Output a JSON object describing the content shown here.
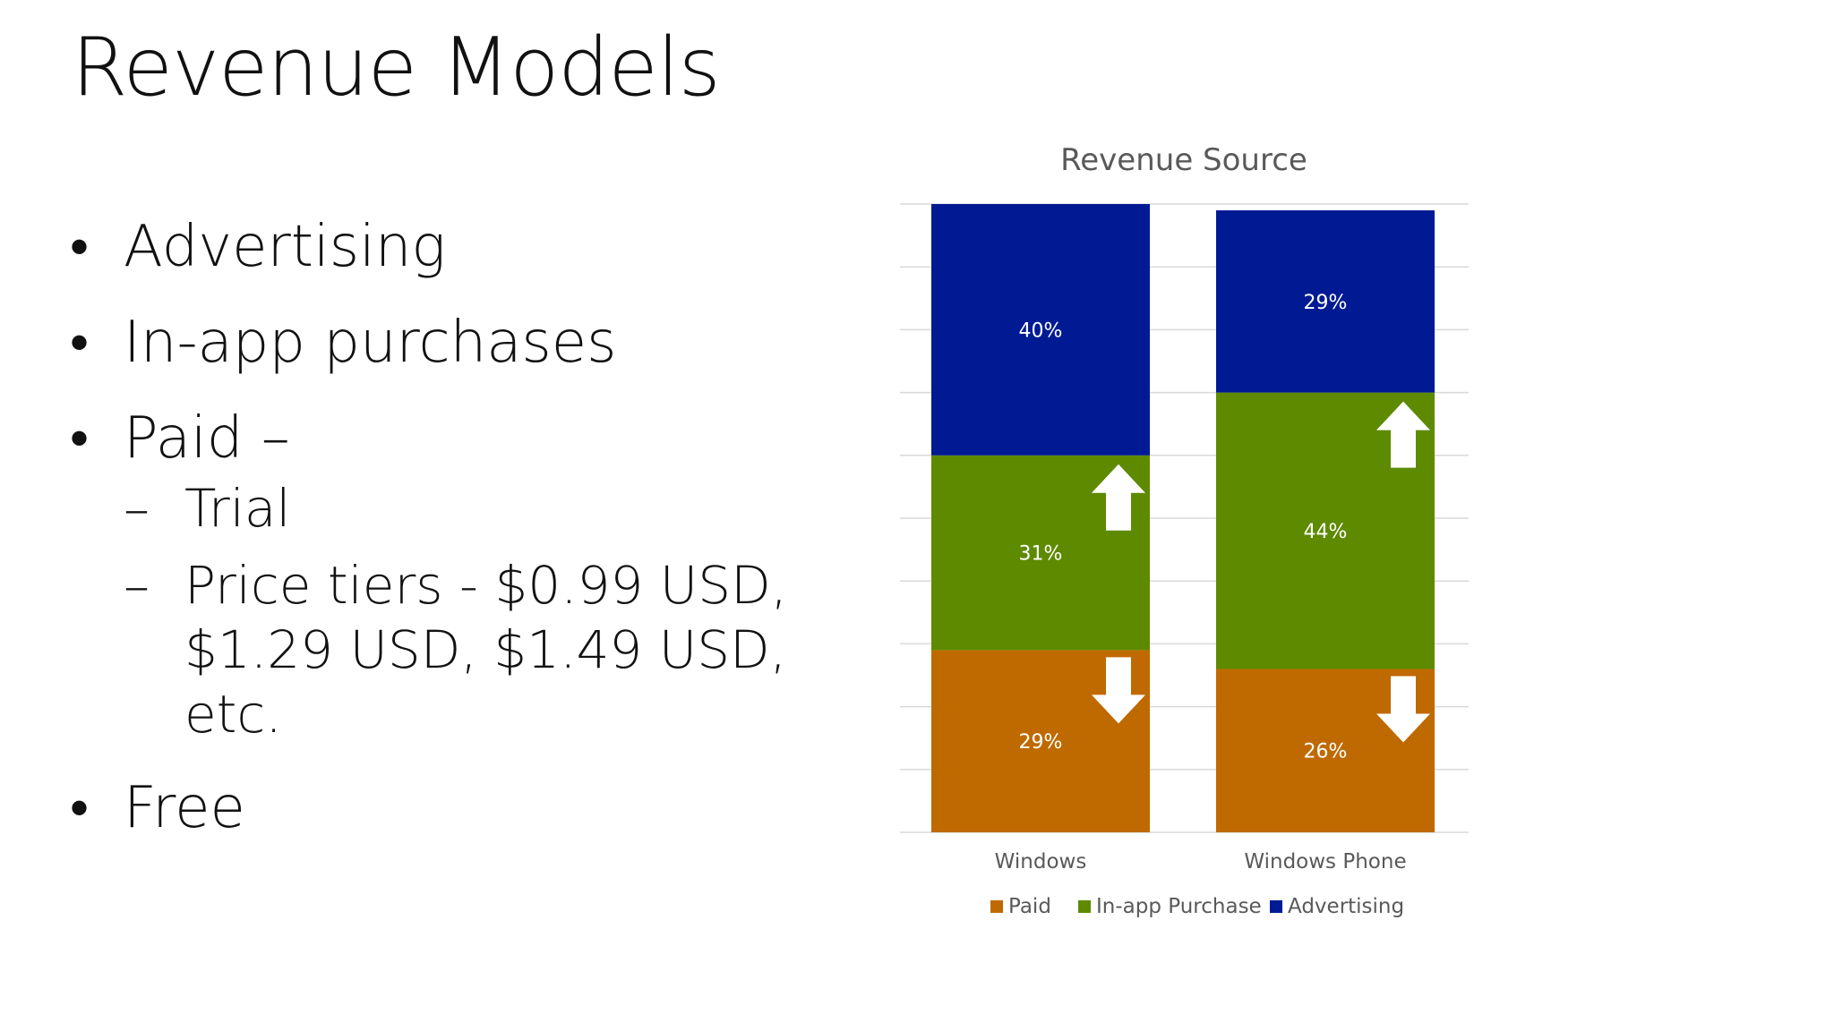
{
  "slide": {
    "title": "Revenue Models",
    "bullets": [
      {
        "text": "Advertising",
        "sub": []
      },
      {
        "text": "In-app purchases",
        "sub": []
      },
      {
        "text": "Paid –",
        "sub": [
          "Trial",
          "Price tiers - $0.99 USD, $1.29 USD, $1.49 USD, etc."
        ]
      },
      {
        "text": "Free",
        "sub": []
      }
    ],
    "bullet_symbol": "•",
    "sub_symbol": "–"
  },
  "chart_data": {
    "type": "bar",
    "stacked": true,
    "percent_stacked": true,
    "title": "Revenue Source",
    "categories": [
      "Windows",
      "Windows Phone"
    ],
    "series": [
      {
        "name": "Paid",
        "color": "#BF6A00",
        "values": [
          29,
          26
        ],
        "labels": [
          "29%",
          "26%"
        ]
      },
      {
        "name": "In-app Purchase",
        "color": "#5E8A00",
        "values": [
          31,
          44
        ],
        "labels": [
          "31%",
          "44%"
        ]
      },
      {
        "name": "Advertising",
        "color": "#001A94",
        "values": [
          40,
          29
        ],
        "labels": [
          "40%",
          "29%"
        ]
      }
    ],
    "ylim": [
      0,
      100
    ],
    "gridlines": true,
    "legend_position": "bottom",
    "annotations": [
      {
        "category": "Windows",
        "series": "In-app Purchase",
        "icon": "arrow-up-icon"
      },
      {
        "category": "Windows",
        "series": "Paid",
        "icon": "arrow-down-icon"
      },
      {
        "category": "Windows Phone",
        "series": "In-app Purchase",
        "icon": "arrow-up-icon"
      },
      {
        "category": "Windows Phone",
        "series": "Paid",
        "icon": "arrow-down-icon"
      }
    ]
  }
}
